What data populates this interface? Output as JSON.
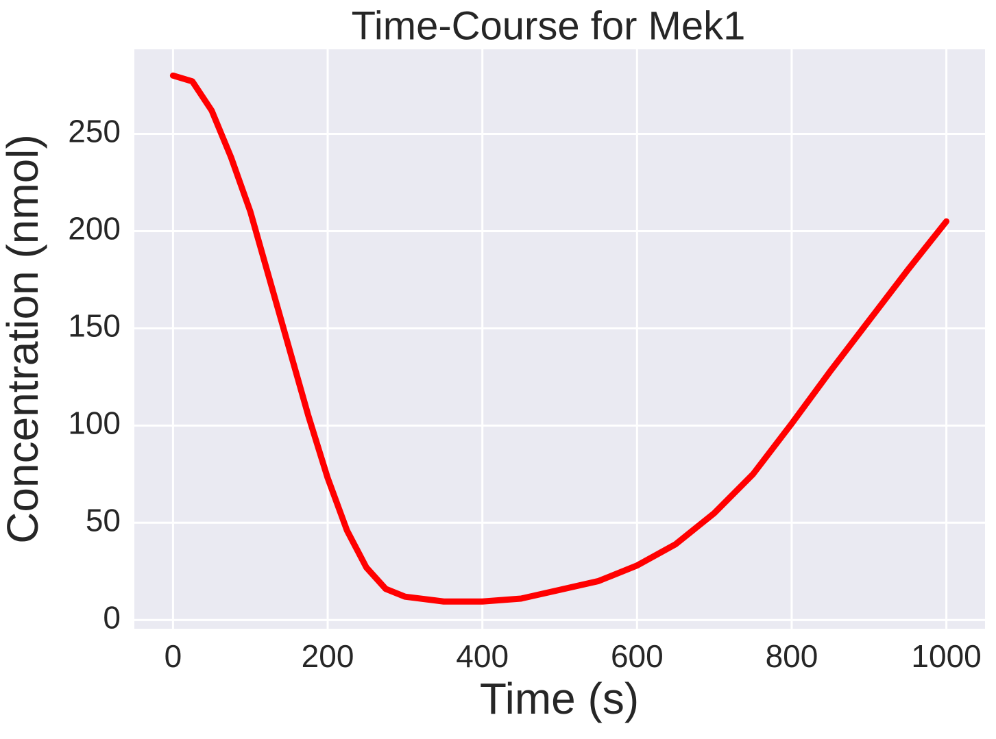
{
  "chart_data": {
    "type": "line",
    "title": "Time-Course for Mek1",
    "x_label": "Time (s)",
    "y_label": "Concentration (nmol)",
    "x": [
      0,
      25,
      50,
      75,
      100,
      125,
      150,
      175,
      200,
      225,
      250,
      275,
      300,
      350,
      400,
      450,
      500,
      550,
      600,
      650,
      700,
      750,
      800,
      850,
      900,
      950,
      1000
    ],
    "values": [
      280,
      277,
      262,
      238,
      210,
      175,
      140,
      105,
      73,
      46,
      27,
      16,
      12,
      9.5,
      9.5,
      11,
      15.5,
      20,
      28,
      39,
      55,
      75,
      101,
      128,
      154,
      180,
      205
    ],
    "color": "#ff0000",
    "xlim": [
      -50,
      1050
    ],
    "xticks": [
      0,
      200,
      400,
      600,
      800,
      1000
    ],
    "ylim": [
      -4.5,
      293.5
    ],
    "yticks": [
      0,
      50,
      100,
      150,
      200,
      250
    ],
    "grid": true
  }
}
